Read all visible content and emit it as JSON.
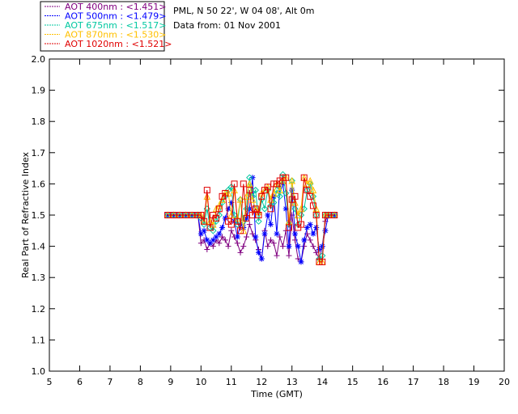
{
  "header": {
    "site": "PML, N 50 22', W 04 08', Alt 0m",
    "date": "Data from: 01 Nov 2001"
  },
  "chart_data": {
    "type": "line",
    "xlabel": "Time (GMT)",
    "ylabel": "Real Part of Refractive Index",
    "xlim": [
      5,
      20
    ],
    "ylim": [
      1.0,
      2.0
    ],
    "xticks": [
      5,
      6,
      7,
      8,
      9,
      10,
      11,
      12,
      13,
      14,
      15,
      16,
      17,
      18,
      19,
      20
    ],
    "yticks": [
      1.0,
      1.1,
      1.2,
      1.3,
      1.4,
      1.5,
      1.6,
      1.7,
      1.8,
      1.9,
      2.0
    ],
    "grid": false,
    "legend_position": "top-left",
    "series": [
      {
        "name": "AOT  400nm : <1.451>",
        "color": "#800080",
        "marker": "plus",
        "x": [
          8.9,
          9.1,
          9.3,
          9.5,
          9.7,
          9.9,
          10.0,
          10.1,
          10.2,
          10.3,
          10.4,
          10.5,
          10.6,
          10.7,
          10.8,
          10.9,
          11.0,
          11.1,
          11.2,
          11.3,
          11.4,
          11.5,
          11.6,
          11.7,
          11.8,
          11.9,
          12.0,
          12.1,
          12.2,
          12.3,
          12.4,
          12.5,
          12.6,
          12.7,
          12.8,
          12.9,
          13.0,
          13.1,
          13.2,
          13.3,
          13.4,
          13.5,
          13.6,
          13.7,
          13.8,
          13.9,
          14.0,
          14.1,
          14.2,
          14.4
        ],
        "y": [
          1.5,
          1.5,
          1.5,
          1.5,
          1.5,
          1.5,
          1.41,
          1.42,
          1.39,
          1.41,
          1.4,
          1.42,
          1.41,
          1.43,
          1.42,
          1.4,
          1.45,
          1.43,
          1.41,
          1.38,
          1.4,
          1.43,
          1.47,
          1.44,
          1.42,
          1.39,
          1.36,
          1.45,
          1.4,
          1.42,
          1.41,
          1.37,
          1.43,
          1.4,
          1.45,
          1.37,
          1.5,
          1.42,
          1.36,
          1.35,
          1.4,
          1.44,
          1.42,
          1.4,
          1.38,
          1.36,
          1.4,
          1.48,
          1.5,
          1.5
        ]
      },
      {
        "name": "AOT  500nm : <1.479>",
        "color": "#0000ff",
        "marker": "star",
        "x": [
          8.9,
          9.1,
          9.3,
          9.5,
          9.7,
          9.9,
          10.0,
          10.1,
          10.2,
          10.3,
          10.4,
          10.5,
          10.6,
          10.7,
          10.8,
          10.9,
          11.0,
          11.1,
          11.2,
          11.3,
          11.4,
          11.5,
          11.6,
          11.7,
          11.8,
          11.9,
          12.0,
          12.1,
          12.2,
          12.3,
          12.4,
          12.5,
          12.6,
          12.7,
          12.8,
          12.9,
          13.0,
          13.1,
          13.2,
          13.3,
          13.4,
          13.5,
          13.6,
          13.7,
          13.8,
          13.9,
          14.0,
          14.1,
          14.2,
          14.4
        ],
        "y": [
          1.5,
          1.5,
          1.5,
          1.5,
          1.5,
          1.5,
          1.44,
          1.45,
          1.42,
          1.41,
          1.42,
          1.43,
          1.44,
          1.46,
          1.49,
          1.52,
          1.54,
          1.48,
          1.43,
          1.47,
          1.46,
          1.49,
          1.52,
          1.62,
          1.43,
          1.38,
          1.36,
          1.44,
          1.5,
          1.47,
          1.56,
          1.44,
          1.59,
          1.6,
          1.52,
          1.4,
          1.58,
          1.44,
          1.4,
          1.35,
          1.42,
          1.46,
          1.47,
          1.44,
          1.46,
          1.39,
          1.4,
          1.45,
          1.5,
          1.5
        ]
      },
      {
        "name": "AOT  675nm : <1.517>",
        "color": "#00c8a0",
        "marker": "diamond",
        "x": [
          8.9,
          9.1,
          9.3,
          9.5,
          9.7,
          9.9,
          10.0,
          10.1,
          10.2,
          10.3,
          10.4,
          10.5,
          10.6,
          10.7,
          10.8,
          10.9,
          11.0,
          11.1,
          11.2,
          11.3,
          11.4,
          11.5,
          11.6,
          11.7,
          11.8,
          11.9,
          12.0,
          12.1,
          12.2,
          12.3,
          12.4,
          12.5,
          12.6,
          12.7,
          12.8,
          12.9,
          13.0,
          13.1,
          13.2,
          13.3,
          13.4,
          13.5,
          13.6,
          13.7,
          13.8,
          13.9,
          14.0,
          14.1,
          14.2,
          14.4
        ],
        "y": [
          1.5,
          1.5,
          1.5,
          1.5,
          1.5,
          1.5,
          1.49,
          1.47,
          1.52,
          1.46,
          1.45,
          1.48,
          1.5,
          1.54,
          1.56,
          1.58,
          1.59,
          1.5,
          1.47,
          1.55,
          1.48,
          1.52,
          1.62,
          1.56,
          1.58,
          1.48,
          1.55,
          1.52,
          1.58,
          1.53,
          1.54,
          1.58,
          1.56,
          1.63,
          1.57,
          1.47,
          1.61,
          1.52,
          1.47,
          1.5,
          1.52,
          1.58,
          1.6,
          1.56,
          1.5,
          1.36,
          1.37,
          1.5,
          1.5,
          1.5
        ]
      },
      {
        "name": "AOT  870nm : <1.530>",
        "color": "#ffc000",
        "marker": "triangle",
        "x": [
          8.9,
          9.1,
          9.3,
          9.5,
          9.7,
          9.9,
          10.0,
          10.1,
          10.2,
          10.3,
          10.4,
          10.5,
          10.6,
          10.7,
          10.8,
          10.9,
          11.0,
          11.1,
          11.2,
          11.3,
          11.4,
          11.5,
          11.6,
          11.7,
          11.8,
          11.9,
          12.0,
          12.1,
          12.2,
          12.3,
          12.4,
          12.5,
          12.6,
          12.7,
          12.8,
          12.9,
          13.0,
          13.1,
          13.2,
          13.3,
          13.4,
          13.5,
          13.6,
          13.7,
          13.8,
          13.9,
          14.0,
          14.1,
          14.2,
          14.4
        ],
        "y": [
          1.5,
          1.5,
          1.5,
          1.5,
          1.5,
          1.5,
          1.5,
          1.48,
          1.56,
          1.48,
          1.47,
          1.52,
          1.53,
          1.55,
          1.57,
          1.57,
          1.5,
          1.58,
          1.49,
          1.55,
          1.45,
          1.56,
          1.6,
          1.55,
          1.52,
          1.51,
          1.57,
          1.58,
          1.59,
          1.55,
          1.57,
          1.6,
          1.58,
          1.61,
          1.62,
          1.48,
          1.61,
          1.54,
          1.5,
          1.52,
          1.62,
          1.6,
          1.61,
          1.58,
          1.52,
          1.35,
          1.35,
          1.5,
          1.5,
          1.5
        ]
      },
      {
        "name": "AOT 1020nm : <1.521>",
        "color": "#e00000",
        "marker": "square",
        "x": [
          8.9,
          9.1,
          9.3,
          9.5,
          9.7,
          9.9,
          10.0,
          10.1,
          10.2,
          10.3,
          10.4,
          10.5,
          10.6,
          10.7,
          10.8,
          10.9,
          11.0,
          11.1,
          11.2,
          11.3,
          11.4,
          11.5,
          11.6,
          11.7,
          11.8,
          11.9,
          12.0,
          12.1,
          12.2,
          12.3,
          12.4,
          12.5,
          12.6,
          12.7,
          12.8,
          12.9,
          13.0,
          13.1,
          13.2,
          13.3,
          13.4,
          13.5,
          13.6,
          13.7,
          13.8,
          13.9,
          14.0,
          14.1,
          14.2,
          14.4
        ],
        "y": [
          1.5,
          1.5,
          1.5,
          1.5,
          1.5,
          1.5,
          1.5,
          1.48,
          1.58,
          1.46,
          1.5,
          1.49,
          1.52,
          1.56,
          1.57,
          1.48,
          1.47,
          1.6,
          1.48,
          1.45,
          1.6,
          1.49,
          1.58,
          1.5,
          1.52,
          1.5,
          1.56,
          1.58,
          1.59,
          1.52,
          1.6,
          1.6,
          1.61,
          1.62,
          1.62,
          1.46,
          1.55,
          1.56,
          1.46,
          1.47,
          1.62,
          1.58,
          1.56,
          1.53,
          1.5,
          1.35,
          1.35,
          1.5,
          1.5,
          1.5
        ]
      }
    ]
  }
}
